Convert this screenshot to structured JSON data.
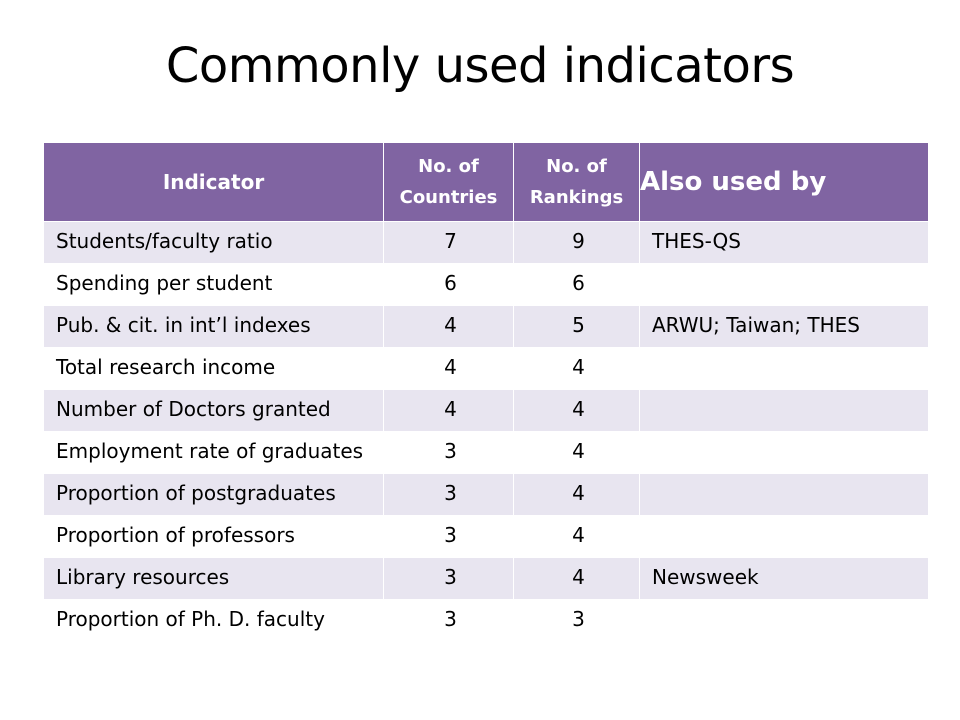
{
  "title": "Commonly used indicators",
  "table": {
    "headers": {
      "indicator": "Indicator",
      "countries": "No. of Countries",
      "rankings": "No. of Rankings",
      "also": "Also used by"
    },
    "rows": [
      {
        "indicator": "Students/faculty ratio",
        "countries": "7",
        "rankings": "9",
        "also": "THES-QS"
      },
      {
        "indicator": "Spending per student",
        "countries": "6",
        "rankings": "6",
        "also": ""
      },
      {
        "indicator": "Pub. & cit. in int’l indexes",
        "countries": "4",
        "rankings": "5",
        "also": "ARWU; Taiwan; THES"
      },
      {
        "indicator": "Total research income",
        "countries": "4",
        "rankings": "4",
        "also": ""
      },
      {
        "indicator": "Number of Doctors granted",
        "countries": "4",
        "rankings": "4",
        "also": ""
      },
      {
        "indicator": "Employment rate of graduates",
        "countries": "3",
        "rankings": "4",
        "also": ""
      },
      {
        "indicator": "Proportion of postgraduates",
        "countries": "3",
        "rankings": "4",
        "also": ""
      },
      {
        "indicator": "Proportion of professors",
        "countries": "3",
        "rankings": "4",
        "also": ""
      },
      {
        "indicator": "Library resources",
        "countries": "3",
        "rankings": "4",
        "also": "Newsweek"
      },
      {
        "indicator": "Proportion of Ph. D. faculty",
        "countries": "3",
        "rankings": "3",
        "also": ""
      }
    ]
  },
  "colors": {
    "header_bg": "#8064a2",
    "row_alt_bg": "#e8e5f0",
    "row_bg": "#ffffff"
  }
}
